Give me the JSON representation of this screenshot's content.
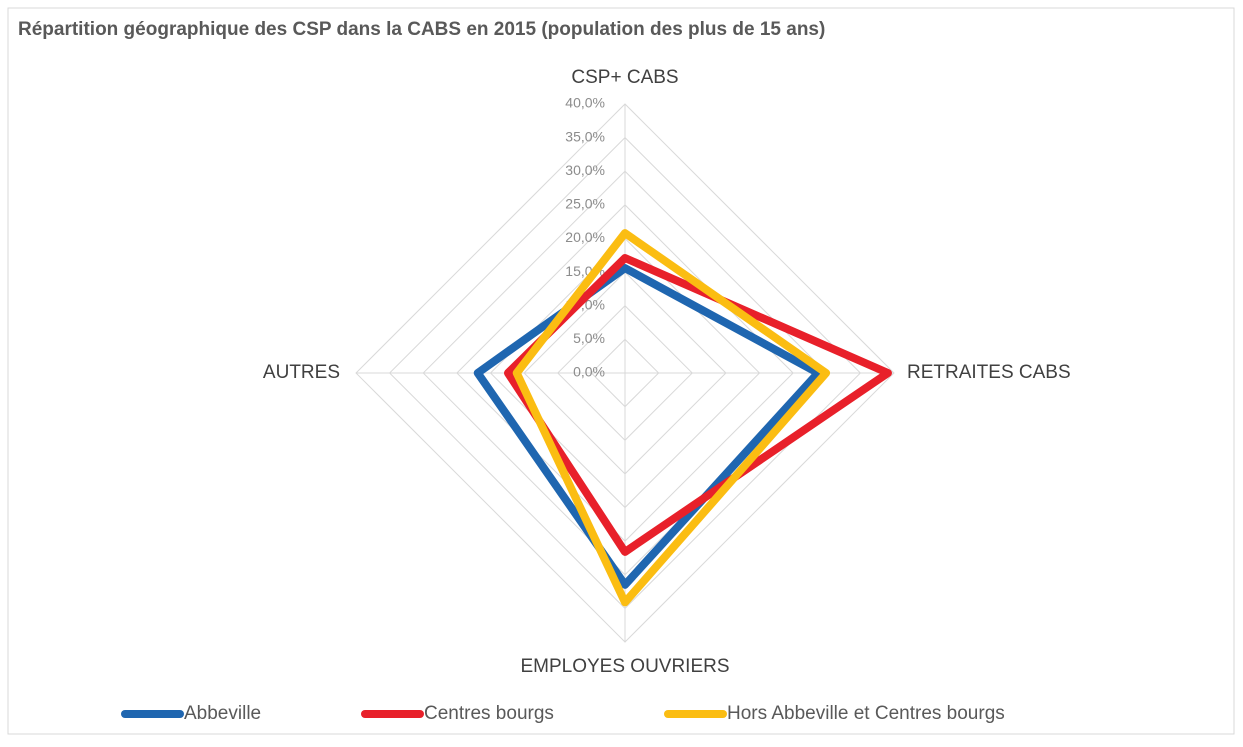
{
  "chart_data": {
    "type": "radar",
    "title": "Répartition géographique des CSP dans la CABS en 2015 (population des plus de 15 ans)",
    "categories": [
      "CSP+ CABS",
      "RETRAITES CABS",
      "EMPLOYES OUVRIERS",
      "AUTRES"
    ],
    "series": [
      {
        "name": "Abbeville",
        "color": "#1f66b0",
        "values": [
          15.6,
          28.7,
          31.5,
          21.9
        ]
      },
      {
        "name": "Centres bourgs",
        "color": "#e8202a",
        "values": [
          17.1,
          39.1,
          26.6,
          17.4
        ]
      },
      {
        "name": "Hors Abbeville et Centres bourgs",
        "color": "#fbbd12",
        "values": [
          20.8,
          29.9,
          34.1,
          16.1
        ]
      }
    ],
    "ylim": [
      0,
      40
    ],
    "yticks": [
      {
        "value": 0,
        "label": "0,0%"
      },
      {
        "value": 5,
        "label": "5,0%"
      },
      {
        "value": 10,
        "label": "10,0%"
      },
      {
        "value": 15,
        "label": "15,0%"
      },
      {
        "value": 20,
        "label": "20,0%"
      },
      {
        "value": 25,
        "label": "25,0%"
      },
      {
        "value": 30,
        "label": "30,0%"
      },
      {
        "value": 35,
        "label": "35,0%"
      },
      {
        "value": 40,
        "label": "40,0%"
      }
    ],
    "grid": true,
    "legend": "bottom"
  }
}
